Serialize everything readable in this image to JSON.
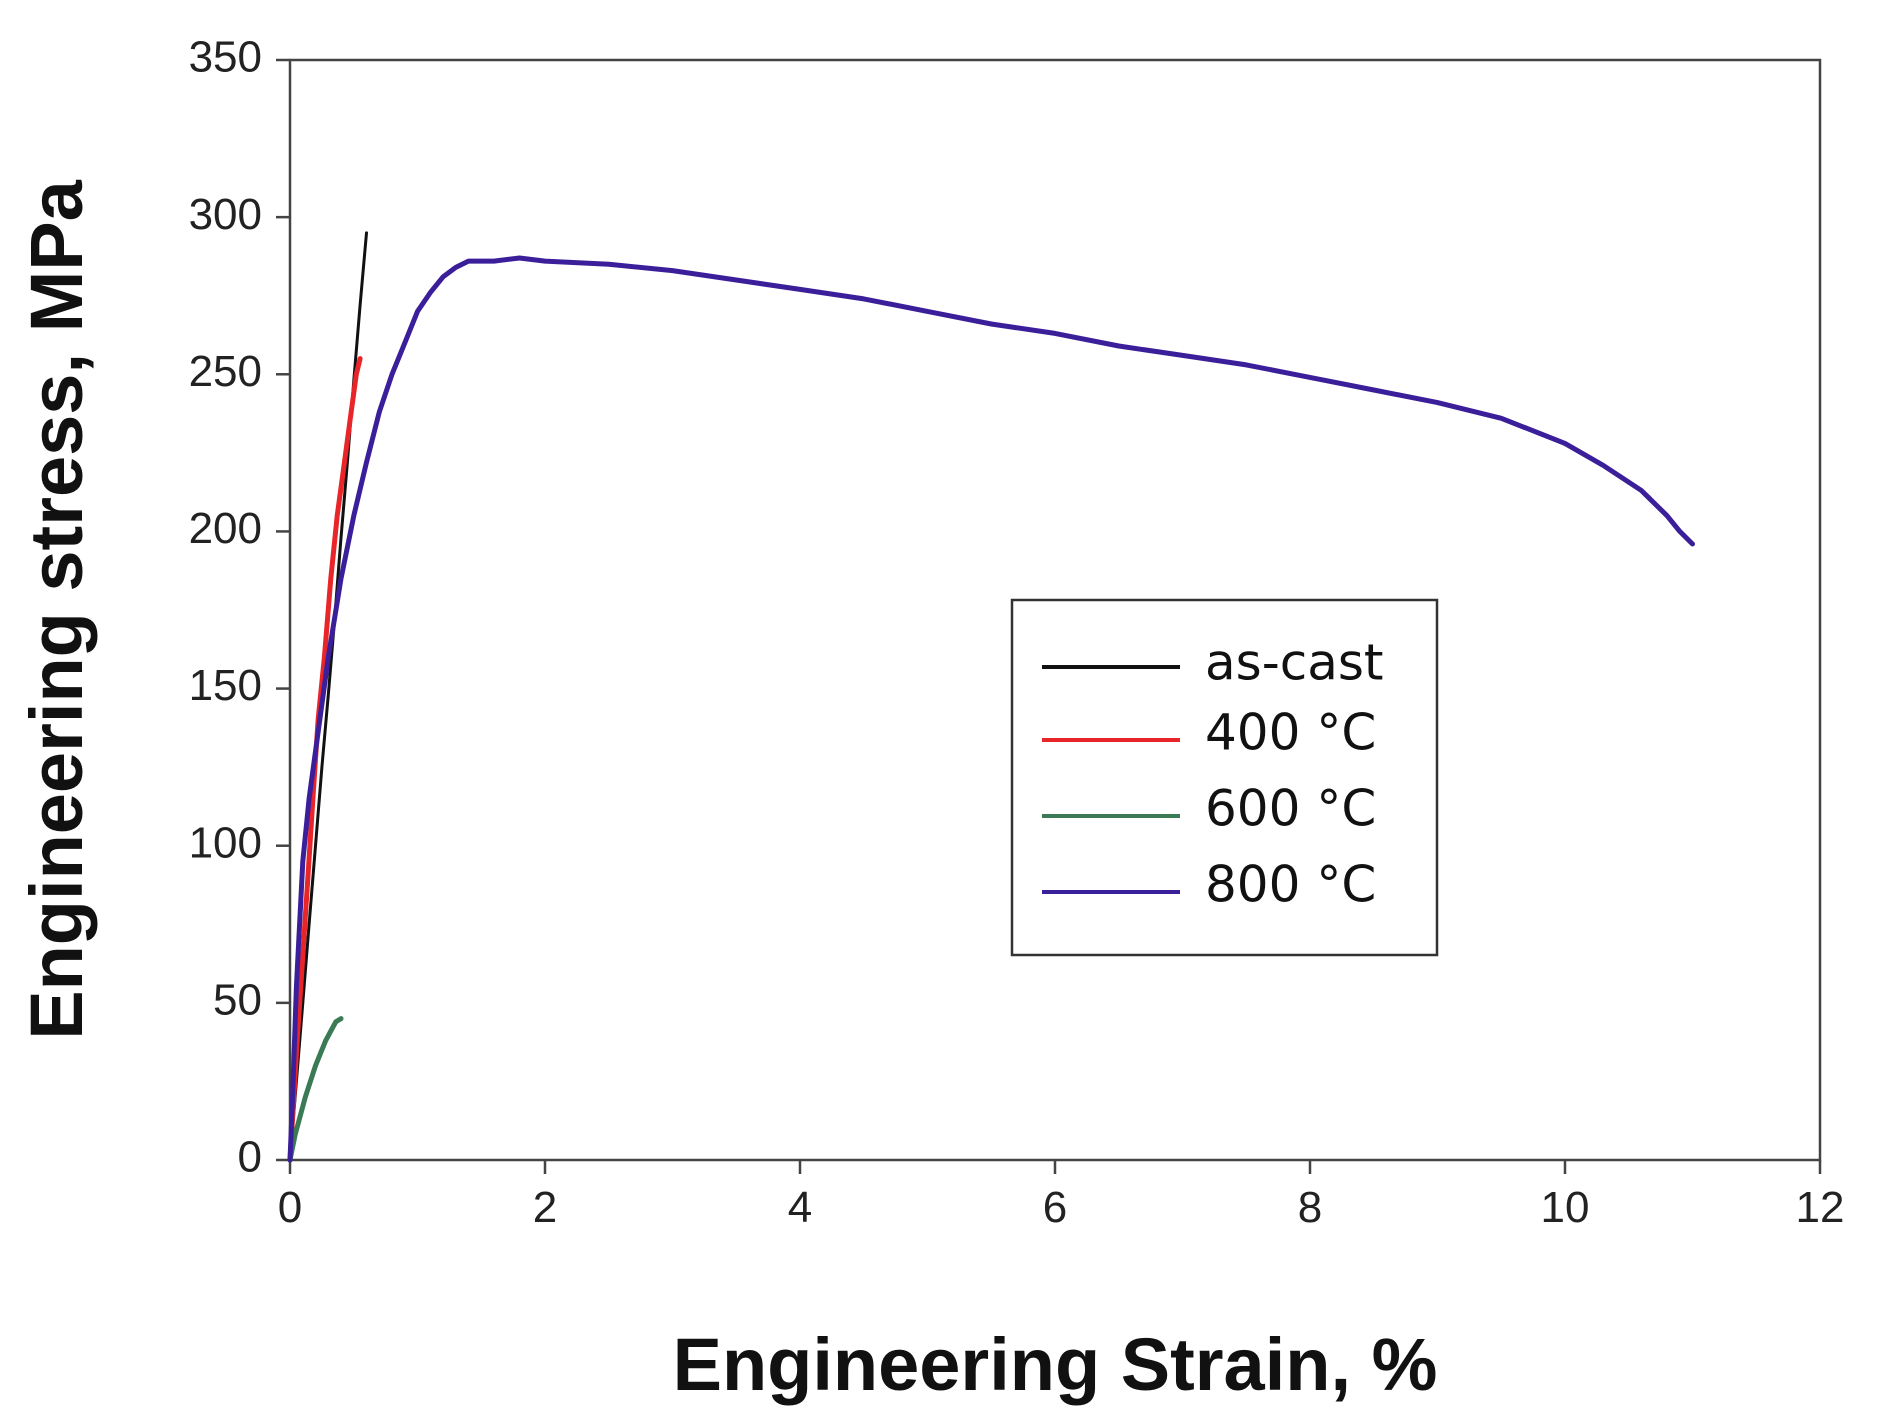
{
  "chart_data": {
    "type": "line",
    "title": "",
    "xlabel": "Engineering Strain, %",
    "ylabel": "Engineering stress, MPa",
    "xlim": [
      0,
      12
    ],
    "ylim": [
      0,
      350
    ],
    "xticks": [
      0,
      2,
      4,
      6,
      8,
      10,
      12
    ],
    "yticks": [
      0,
      50,
      100,
      150,
      200,
      250,
      300,
      350
    ],
    "grid": false,
    "legend_position": "center-right",
    "series": [
      {
        "name": "as-cast",
        "color": "#111111",
        "x": [
          0,
          0.05,
          0.1,
          0.15,
          0.2,
          0.25,
          0.3,
          0.35,
          0.4,
          0.45,
          0.5,
          0.55,
          0.6
        ],
        "y": [
          0,
          25,
          50,
          75,
          100,
          125,
          148,
          172,
          198,
          222,
          248,
          272,
          295
        ]
      },
      {
        "name": "400 °C",
        "color": "#e8262a",
        "x": [
          0,
          0.03,
          0.06,
          0.1,
          0.14,
          0.18,
          0.22,
          0.27,
          0.32,
          0.37,
          0.42,
          0.47,
          0.52,
          0.55
        ],
        "y": [
          0,
          20,
          40,
          65,
          90,
          115,
          140,
          160,
          185,
          205,
          220,
          235,
          250,
          255
        ]
      },
      {
        "name": "600 °C",
        "color": "#3a7a55",
        "x": [
          0,
          0.04,
          0.08,
          0.12,
          0.16,
          0.2,
          0.24,
          0.28,
          0.32,
          0.36,
          0.4
        ],
        "y": [
          0,
          8,
          14,
          20,
          25,
          30,
          34,
          38,
          41,
          44,
          45
        ]
      },
      {
        "name": "800 °C",
        "color": "#3b1f9a",
        "x": [
          0,
          0.02,
          0.05,
          0.1,
          0.15,
          0.2,
          0.3,
          0.4,
          0.5,
          0.6,
          0.7,
          0.8,
          0.9,
          1.0,
          1.1,
          1.2,
          1.3,
          1.4,
          1.6,
          1.8,
          2.0,
          2.5,
          3.0,
          3.5,
          4.0,
          4.5,
          5.0,
          5.5,
          6.0,
          6.5,
          7.0,
          7.5,
          8.0,
          8.5,
          9.0,
          9.5,
          10.0,
          10.3,
          10.6,
          10.8,
          10.9,
          11.0
        ],
        "y": [
          0,
          20,
          55,
          95,
          115,
          130,
          160,
          185,
          205,
          222,
          238,
          250,
          260,
          270,
          276,
          281,
          284,
          286,
          286,
          287,
          286,
          285,
          283,
          280,
          277,
          274,
          270,
          266,
          263,
          259,
          256,
          253,
          249,
          245,
          241,
          236,
          228,
          221,
          213,
          205,
          200,
          196
        ]
      }
    ]
  }
}
